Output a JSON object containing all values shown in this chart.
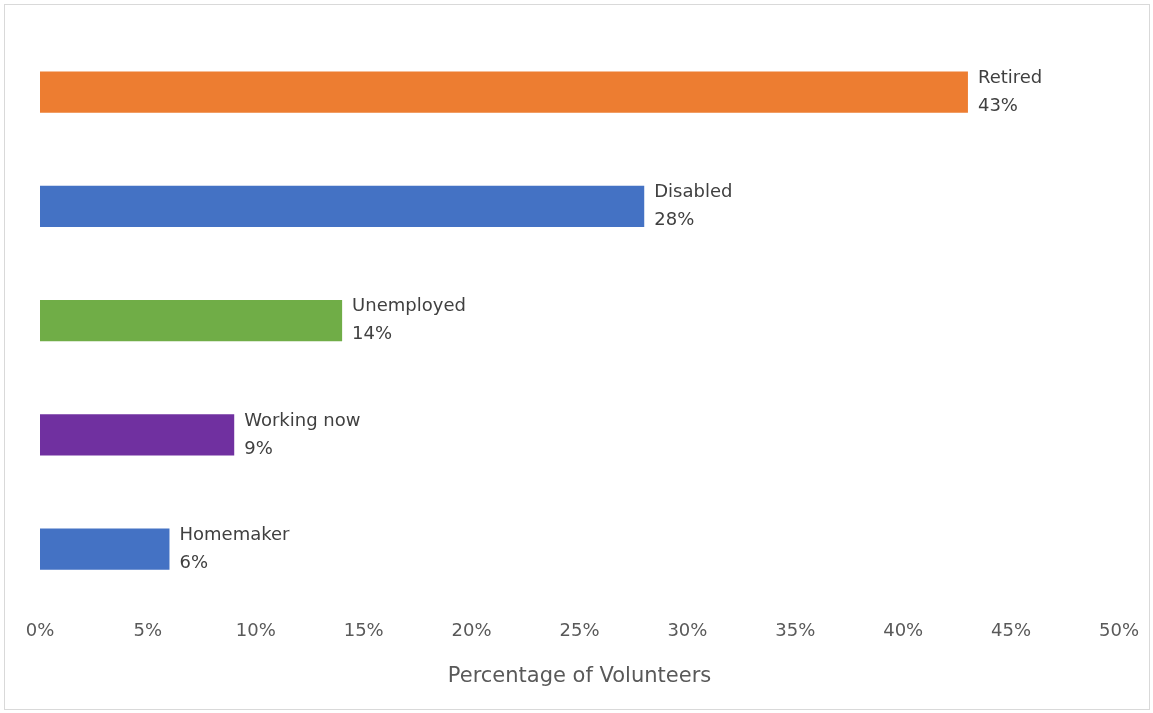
{
  "chart_data": {
    "type": "bar",
    "orientation": "horizontal",
    "xlabel": "Percentage of Volunteers",
    "categories": [
      "Retired",
      "Disabled",
      "Unemployed",
      "Working now",
      "Homemaker"
    ],
    "values": [
      43,
      28,
      14,
      9,
      6
    ],
    "colors": [
      "#ed7d31",
      "#4472c4",
      "#70ad47",
      "#7030a0",
      "#4472c4"
    ],
    "value_labels": [
      "43%",
      "28%",
      "14%",
      "9%",
      "6%"
    ],
    "xlim": [
      0,
      50
    ],
    "xticks": [
      {
        "value": 0,
        "label": "0%"
      },
      {
        "value": 5,
        "label": "5%"
      },
      {
        "value": 10,
        "label": "10%"
      },
      {
        "value": 15,
        "label": "15%"
      },
      {
        "value": 20,
        "label": "20%"
      },
      {
        "value": 25,
        "label": "25%"
      },
      {
        "value": 30,
        "label": "30%"
      },
      {
        "value": 35,
        "label": "35%"
      },
      {
        "value": 40,
        "label": "40%"
      },
      {
        "value": 45,
        "label": "45%"
      },
      {
        "value": 50,
        "label": "50%"
      }
    ],
    "grid": false,
    "legend": false
  }
}
